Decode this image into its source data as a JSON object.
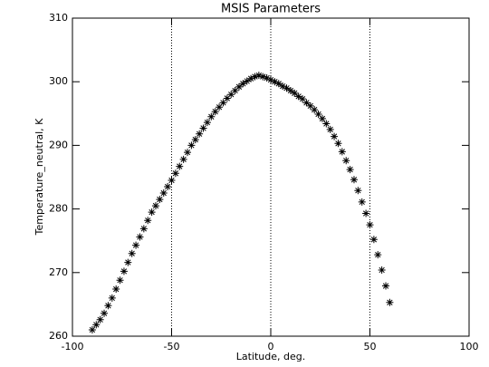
{
  "chart_data": {
    "type": "scatter",
    "title": "MSIS Parameters",
    "x_label": "Latitude, deg.",
    "y_label": "Temperature_neutral, K",
    "xlim": [
      -100,
      100
    ],
    "ylim": [
      260,
      310
    ],
    "xticks": [
      -100,
      -50,
      0,
      50,
      100
    ],
    "yticks": [
      260,
      270,
      280,
      290,
      300,
      310
    ],
    "vlines": [
      -50,
      0,
      50
    ],
    "color": "#000000",
    "marker": "asterisk",
    "series": [
      {
        "name": "Temperature_neutral",
        "x": [
          -90,
          -88,
          -86,
          -84,
          -82,
          -80,
          -78,
          -76,
          -74,
          -72,
          -70,
          -68,
          -66,
          -64,
          -62,
          -60,
          -58,
          -56,
          -54,
          -52,
          -50,
          -48,
          -46,
          -44,
          -42,
          -40,
          -38,
          -36,
          -34,
          -32,
          -30,
          -28,
          -26,
          -24,
          -22,
          -20,
          -18,
          -16,
          -14,
          -12,
          -10,
          -8,
          -6,
          -4,
          -2,
          0,
          2,
          4,
          6,
          8,
          10,
          12,
          14,
          16,
          18,
          20,
          22,
          24,
          26,
          28,
          30,
          32,
          34,
          36,
          38,
          40,
          42,
          44,
          46,
          48,
          50,
          52,
          54,
          56,
          58,
          60
        ],
        "values": [
          261.0,
          261.8,
          262.6,
          263.6,
          264.8,
          266.0,
          267.4,
          268.8,
          270.2,
          271.6,
          273.0,
          274.3,
          275.6,
          276.9,
          278.2,
          279.5,
          280.5,
          281.5,
          282.5,
          283.5,
          284.5,
          285.6,
          286.7,
          287.8,
          288.9,
          290.0,
          290.9,
          291.8,
          292.7,
          293.6,
          294.5,
          295.3,
          296.0,
          296.7,
          297.4,
          298.0,
          298.6,
          299.2,
          299.7,
          300.1,
          300.5,
          300.8,
          301.0,
          300.8,
          300.6,
          300.3,
          300.0,
          299.7,
          299.3,
          299.0,
          298.6,
          298.2,
          297.7,
          297.3,
          296.7,
          296.2,
          295.6,
          294.9,
          294.2,
          293.4,
          292.5,
          291.4,
          290.3,
          289.0,
          287.6,
          286.2,
          284.6,
          282.9,
          281.1,
          279.3,
          277.5,
          275.2,
          272.8,
          270.4,
          267.9,
          265.3
        ]
      }
    ]
  }
}
